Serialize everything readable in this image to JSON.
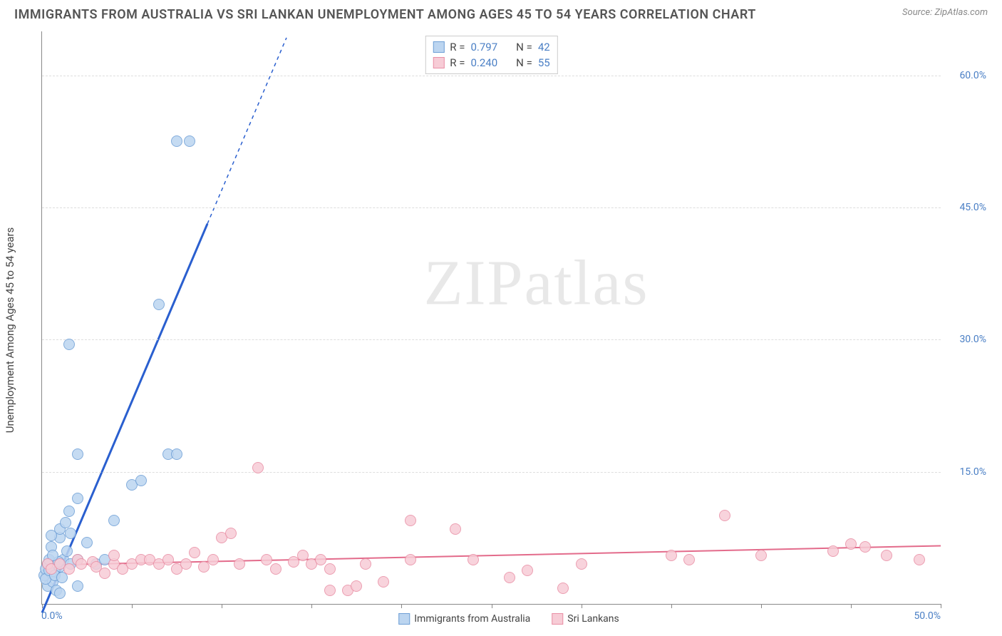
{
  "header": {
    "title": "IMMIGRANTS FROM AUSTRALIA VS SRI LANKAN UNEMPLOYMENT AMONG AGES 45 TO 54 YEARS CORRELATION CHART",
    "source_prefix": "Source: ",
    "source_name": "ZipAtlas.com"
  },
  "axes": {
    "y_label": "Unemployment Among Ages 45 to 54 years",
    "x_min": 0,
    "x_max": 50,
    "y_min": 0,
    "y_max": 65,
    "y_ticks": [
      15,
      30,
      45,
      60
    ],
    "y_tick_labels": [
      "15.0%",
      "30.0%",
      "45.0%",
      "60.0%"
    ],
    "x_ticks": [
      0,
      5,
      10,
      15,
      20,
      25,
      30,
      35,
      40,
      45,
      50
    ],
    "x_origin_label": "0.0%",
    "x_max_label": "50.0%"
  },
  "series": [
    {
      "name": "Immigrants from Australia",
      "marker_fill": "#bcd5f0",
      "marker_stroke": "#6e9fd6",
      "line_color": "#2a5fcf",
      "r_label": "R  =",
      "r_value": "0.797",
      "n_label": "N  =",
      "n_value": "42",
      "marker_radius": 8,
      "line_width": 3,
      "trend": {
        "x1": 0,
        "y1": -1.0,
        "x2": 10,
        "y2": 47.0,
        "solid_until_x": 9.2,
        "dashed_to_x": 13.6
      },
      "points": [
        [
          0.1,
          3.2
        ],
        [
          0.2,
          4.0
        ],
        [
          0.3,
          4.5
        ],
        [
          0.4,
          5.0
        ],
        [
          0.5,
          3.5
        ],
        [
          0.3,
          2.0
        ],
        [
          0.6,
          2.5
        ],
        [
          0.8,
          1.5
        ],
        [
          1.0,
          4.2
        ],
        [
          1.0,
          1.2
        ],
        [
          1.2,
          5.0
        ],
        [
          1.4,
          6.0
        ],
        [
          1.0,
          7.5
        ],
        [
          1.0,
          8.5
        ],
        [
          0.5,
          6.5
        ],
        [
          0.5,
          7.8
        ],
        [
          1.6,
          4.5
        ],
        [
          1.6,
          8.0
        ],
        [
          2.0,
          5.0
        ],
        [
          2.0,
          2.0
        ],
        [
          2.5,
          7.0
        ],
        [
          1.5,
          10.5
        ],
        [
          2.0,
          12.0
        ],
        [
          1.3,
          9.2
        ],
        [
          3.0,
          4.5
        ],
        [
          3.5,
          5.0
        ],
        [
          4.0,
          9.5
        ],
        [
          5.0,
          13.5
        ],
        [
          5.5,
          14.0
        ],
        [
          7.0,
          17.0
        ],
        [
          7.5,
          17.0
        ],
        [
          2.0,
          17.0
        ],
        [
          1.5,
          29.5
        ],
        [
          6.5,
          34.0
        ],
        [
          7.5,
          52.5
        ],
        [
          8.2,
          52.5
        ],
        [
          0.2,
          2.8
        ],
        [
          0.4,
          3.8
        ],
        [
          0.7,
          3.2
        ],
        [
          0.9,
          4.8
        ],
        [
          0.6,
          5.5
        ],
        [
          1.1,
          3.0
        ]
      ]
    },
    {
      "name": "Sri Lankans",
      "marker_fill": "#f7ccd6",
      "marker_stroke": "#e98fa5",
      "line_color": "#e36b8b",
      "r_label": "R  =",
      "r_value": "0.240",
      "n_label": "N  =",
      "n_value": "55",
      "marker_radius": 8,
      "line_width": 2,
      "trend": {
        "x1": 0,
        "y1": 4.4,
        "x2": 50,
        "y2": 6.6
      },
      "points": [
        [
          0.3,
          4.5
        ],
        [
          0.5,
          4.0
        ],
        [
          1.0,
          4.5
        ],
        [
          1.5,
          4.0
        ],
        [
          2.0,
          5.0
        ],
        [
          2.2,
          4.5
        ],
        [
          2.8,
          4.8
        ],
        [
          3.0,
          4.2
        ],
        [
          3.5,
          3.5
        ],
        [
          4.0,
          4.5
        ],
        [
          4.0,
          5.5
        ],
        [
          4.5,
          4.0
        ],
        [
          5.0,
          4.5
        ],
        [
          5.5,
          5.0
        ],
        [
          6.0,
          5.0
        ],
        [
          6.5,
          4.5
        ],
        [
          7.0,
          5.0
        ],
        [
          7.5,
          4.0
        ],
        [
          8.0,
          4.5
        ],
        [
          8.5,
          5.8
        ],
        [
          9.0,
          4.2
        ],
        [
          9.5,
          5.0
        ],
        [
          10.0,
          7.5
        ],
        [
          10.5,
          8.0
        ],
        [
          11.0,
          4.5
        ],
        [
          12.0,
          15.5
        ],
        [
          12.5,
          5.0
        ],
        [
          13.0,
          4.0
        ],
        [
          14.0,
          4.8
        ],
        [
          14.5,
          5.5
        ],
        [
          15.0,
          4.5
        ],
        [
          15.5,
          5.0
        ],
        [
          16.0,
          4.0
        ],
        [
          16.0,
          1.5
        ],
        [
          17.0,
          1.5
        ],
        [
          17.5,
          2.0
        ],
        [
          18.0,
          4.5
        ],
        [
          19.0,
          2.5
        ],
        [
          20.5,
          5.0
        ],
        [
          20.5,
          9.5
        ],
        [
          23.0,
          8.5
        ],
        [
          24.0,
          5.0
        ],
        [
          26.0,
          3.0
        ],
        [
          27.0,
          3.8
        ],
        [
          29.0,
          1.8
        ],
        [
          30.0,
          4.5
        ],
        [
          35.0,
          5.5
        ],
        [
          36.0,
          5.0
        ],
        [
          38.0,
          10.0
        ],
        [
          40.0,
          5.5
        ],
        [
          44.0,
          6.0
        ],
        [
          45.0,
          6.8
        ],
        [
          45.8,
          6.5
        ],
        [
          47.0,
          5.5
        ],
        [
          48.8,
          5.0
        ]
      ]
    }
  ],
  "x_legend": [
    {
      "label": "Immigrants from Australia",
      "fill": "#bcd5f0",
      "stroke": "#6e9fd6"
    },
    {
      "label": "Sri Lankans",
      "fill": "#f7ccd6",
      "stroke": "#e98fa5"
    }
  ],
  "watermark": {
    "a": "ZIP",
    "b": "atlas"
  },
  "colors": {
    "title": "#555555",
    "source": "#888888",
    "axis": "#888888",
    "grid": "#dddddd",
    "tick_label": "#4a7fc5",
    "watermark": "#e8e8e8"
  }
}
